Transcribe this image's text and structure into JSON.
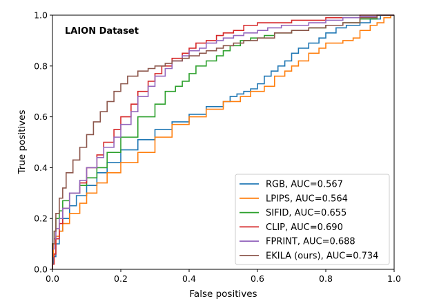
{
  "chart_data": {
    "type": "line",
    "annotation": "LAION Dataset",
    "xlabel": "False positives",
    "ylabel": "True positives",
    "xlim": [
      0,
      1
    ],
    "ylim": [
      0,
      1
    ],
    "xticks": [
      "0.0",
      "0.2",
      "0.4",
      "0.6",
      "0.8",
      "1.0"
    ],
    "yticks": [
      "0.0",
      "0.2",
      "0.4",
      "0.6",
      "0.8",
      "1.0"
    ],
    "grid": false,
    "legend_position": "lower-right",
    "series": [
      {
        "name": "RGB, AUC=0.567",
        "color": "#1f77b4",
        "x": [
          0,
          0.003,
          0.01,
          0.02,
          0.03,
          0.05,
          0.07,
          0.1,
          0.13,
          0.16,
          0.2,
          0.25,
          0.3,
          0.35,
          0.4,
          0.45,
          0.5,
          0.52,
          0.54,
          0.56,
          0.58,
          0.6,
          0.62,
          0.64,
          0.66,
          0.68,
          0.7,
          0.72,
          0.75,
          0.78,
          0.8,
          0.83,
          0.86,
          0.9,
          0.93,
          0.96,
          1.0
        ],
        "y": [
          0,
          0.02,
          0.05,
          0.1,
          0.15,
          0.2,
          0.25,
          0.29,
          0.33,
          0.38,
          0.42,
          0.47,
          0.51,
          0.55,
          0.58,
          0.61,
          0.64,
          0.66,
          0.68,
          0.69,
          0.7,
          0.71,
          0.73,
          0.76,
          0.78,
          0.8,
          0.82,
          0.85,
          0.87,
          0.89,
          0.91,
          0.93,
          0.95,
          0.96,
          0.97,
          0.985,
          1.0
        ]
      },
      {
        "name": "LPIPS, AUC=0.564",
        "color": "#ff7f0e",
        "x": [
          0,
          0.003,
          0.01,
          0.02,
          0.03,
          0.05,
          0.08,
          0.1,
          0.13,
          0.16,
          0.2,
          0.25,
          0.3,
          0.35,
          0.4,
          0.45,
          0.5,
          0.55,
          0.58,
          0.62,
          0.65,
          0.68,
          0.7,
          0.72,
          0.75,
          0.78,
          0.8,
          0.85,
          0.88,
          0.9,
          0.93,
          0.95,
          0.97,
          0.99,
          1.0
        ],
        "y": [
          0,
          0.05,
          0.1,
          0.13,
          0.15,
          0.18,
          0.22,
          0.26,
          0.3,
          0.34,
          0.38,
          0.42,
          0.46,
          0.52,
          0.57,
          0.6,
          0.63,
          0.66,
          0.68,
          0.7,
          0.72,
          0.76,
          0.78,
          0.8,
          0.82,
          0.85,
          0.87,
          0.89,
          0.9,
          0.91,
          0.94,
          0.96,
          0.97,
          0.99,
          1.0
        ]
      },
      {
        "name": "SIFID, AUC=0.655",
        "color": "#2ca02c",
        "x": [
          0,
          0.005,
          0.01,
          0.02,
          0.03,
          0.05,
          0.08,
          0.1,
          0.13,
          0.16,
          0.2,
          0.25,
          0.3,
          0.33,
          0.36,
          0.38,
          0.4,
          0.42,
          0.45,
          0.48,
          0.5,
          0.52,
          0.55,
          0.58,
          0.62,
          0.65,
          0.7,
          0.75,
          0.8,
          0.85,
          0.9,
          0.95,
          1.0
        ],
        "y": [
          0,
          0.1,
          0.15,
          0.2,
          0.23,
          0.27,
          0.3,
          0.33,
          0.36,
          0.4,
          0.46,
          0.52,
          0.6,
          0.65,
          0.7,
          0.72,
          0.74,
          0.77,
          0.8,
          0.82,
          0.84,
          0.86,
          0.88,
          0.9,
          0.91,
          0.92,
          0.93,
          0.94,
          0.95,
          0.96,
          0.97,
          0.985,
          1.0
        ]
      },
      {
        "name": "CLIP, AUC=0.690",
        "color": "#d62728",
        "x": [
          0,
          0.005,
          0.01,
          0.02,
          0.03,
          0.05,
          0.08,
          0.1,
          0.13,
          0.15,
          0.18,
          0.2,
          0.23,
          0.25,
          0.28,
          0.3,
          0.32,
          0.35,
          0.38,
          0.4,
          0.42,
          0.45,
          0.48,
          0.5,
          0.53,
          0.56,
          0.6,
          0.65,
          0.7,
          0.75,
          0.8,
          0.85,
          0.9,
          0.95,
          1.0
        ],
        "y": [
          0,
          0.02,
          0.06,
          0.12,
          0.18,
          0.24,
          0.3,
          0.34,
          0.4,
          0.45,
          0.5,
          0.55,
          0.6,
          0.65,
          0.7,
          0.74,
          0.77,
          0.8,
          0.83,
          0.85,
          0.87,
          0.89,
          0.9,
          0.92,
          0.93,
          0.94,
          0.96,
          0.97,
          0.97,
          0.98,
          0.98,
          0.99,
          0.99,
          1.0,
          1.0
        ]
      },
      {
        "name": "FPRINT, AUC=0.688",
        "color": "#9467bd",
        "x": [
          0,
          0.005,
          0.01,
          0.02,
          0.03,
          0.05,
          0.08,
          0.1,
          0.13,
          0.15,
          0.18,
          0.2,
          0.23,
          0.25,
          0.28,
          0.3,
          0.33,
          0.35,
          0.38,
          0.4,
          0.43,
          0.45,
          0.48,
          0.5,
          0.53,
          0.56,
          0.6,
          0.63,
          0.67,
          0.7,
          0.75,
          0.8,
          0.85,
          0.9,
          0.95,
          1.0
        ],
        "y": [
          0,
          0.08,
          0.12,
          0.16,
          0.2,
          0.24,
          0.3,
          0.35,
          0.4,
          0.44,
          0.48,
          0.52,
          0.57,
          0.62,
          0.68,
          0.72,
          0.76,
          0.79,
          0.82,
          0.84,
          0.86,
          0.87,
          0.89,
          0.9,
          0.91,
          0.92,
          0.93,
          0.94,
          0.95,
          0.96,
          0.96,
          0.97,
          0.98,
          0.99,
          0.995,
          1.0
        ]
      },
      {
        "name": "EKILA (ours), AUC=0.734",
        "color": "#8c564b",
        "x": [
          0,
          0.005,
          0.01,
          0.02,
          0.03,
          0.04,
          0.06,
          0.08,
          0.1,
          0.12,
          0.14,
          0.16,
          0.18,
          0.2,
          0.22,
          0.25,
          0.28,
          0.3,
          0.33,
          0.35,
          0.38,
          0.4,
          0.43,
          0.45,
          0.48,
          0.5,
          0.53,
          0.56,
          0.6,
          0.65,
          0.7,
          0.75,
          0.8,
          0.85,
          0.9,
          0.95,
          1.0
        ],
        "y": [
          0,
          0.1,
          0.15,
          0.22,
          0.28,
          0.32,
          0.38,
          0.43,
          0.48,
          0.53,
          0.58,
          0.62,
          0.66,
          0.7,
          0.73,
          0.76,
          0.78,
          0.79,
          0.8,
          0.81,
          0.82,
          0.83,
          0.84,
          0.85,
          0.86,
          0.87,
          0.88,
          0.89,
          0.9,
          0.91,
          0.93,
          0.94,
          0.95,
          0.96,
          0.97,
          0.99,
          1.0
        ]
      }
    ]
  }
}
